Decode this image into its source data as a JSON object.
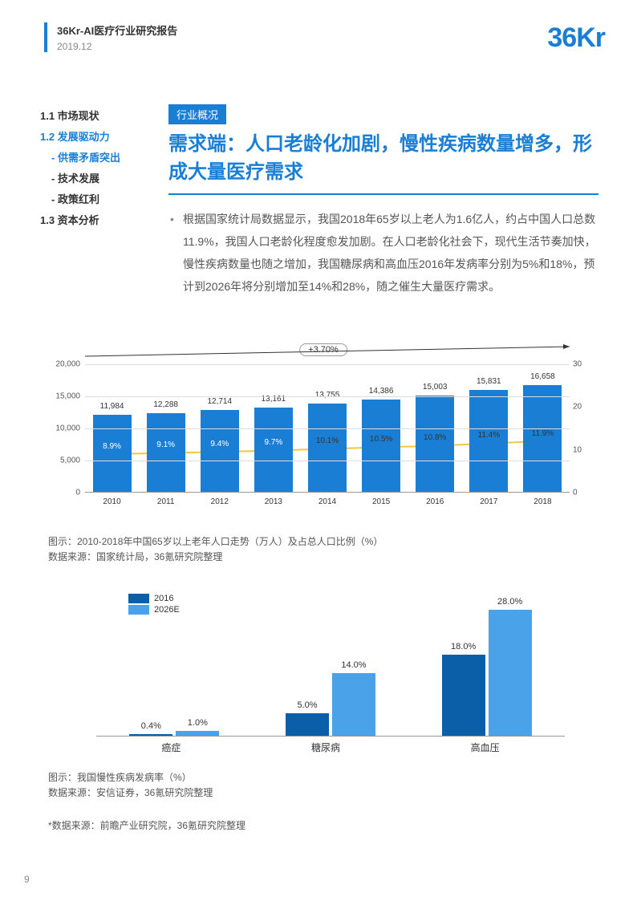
{
  "header": {
    "title": "36Kr-AI医疗行业研究报告",
    "date": "2019.12",
    "logo": "36Kr"
  },
  "toc": {
    "items": [
      {
        "label": "1.1 市场现状",
        "active": false
      },
      {
        "label": "1.2 发展驱动力",
        "active": true
      },
      {
        "label": "1.3 资本分析",
        "active": false
      }
    ],
    "subs": [
      {
        "label": "- 供需矛盾突出",
        "active": true
      },
      {
        "label": "- 技术发展",
        "active": false
      },
      {
        "label": "- 政策红利",
        "active": false
      }
    ]
  },
  "content": {
    "tag": "行业概况",
    "main_title": "需求端：人口老龄化加剧，慢性疾病数量增多，形成大量医疗需求",
    "body": "根据国家统计局数据显示，我国2018年65岁以上老人为1.6亿人，约占中国人口总数11.9%，我国人口老龄化程度愈发加剧。在人口老龄化社会下，现代生活节奏加快，慢性疾病数量也随之增加，我国糖尿病和高血压2016年发病率分别为5%和18%，预计到2026年将分别增加至14%和28%，随之催生大量医疗需求。"
  },
  "chart1": {
    "type": "bar-line-combo",
    "categories": [
      "2010",
      "2011",
      "2012",
      "2013",
      "2014",
      "2015",
      "2016",
      "2017",
      "2018"
    ],
    "bar_values": [
      11984,
      12288,
      12714,
      13161,
      13755,
      14386,
      15003,
      15831,
      16658
    ],
    "bar_labels": [
      "11,984",
      "12,288",
      "12,714",
      "13,161",
      "13,755",
      "14,386",
      "15,003",
      "15,831",
      "16,658"
    ],
    "line_values": [
      8.9,
      9.1,
      9.4,
      9.7,
      10.1,
      10.5,
      10.8,
      11.4,
      11.9
    ],
    "line_labels": [
      "8.9%",
      "9.1%",
      "9.4%",
      "9.7%",
      "10.1%",
      "10.5%",
      "10.8%",
      "11.4%",
      "11.9%"
    ],
    "left_axis": {
      "min": 0,
      "max": 20000,
      "step": 5000,
      "ticks": [
        "0",
        "5,000",
        "10,000",
        "15,000",
        "20,000"
      ]
    },
    "right_axis": {
      "min": 0,
      "max": 30,
      "step": 10,
      "ticks": [
        "0",
        "10",
        "20",
        "30"
      ]
    },
    "growth_label": "+3.70%",
    "bar_color": "#1a7fd4",
    "line_color": "#f5c542",
    "marker_color": "#f5c542",
    "caption1": "图示：2010-2018年中国65岁以上老年人口走势（万人）及占总人口比例（%）",
    "caption2": "数据来源：国家统计局，36氪研究院整理"
  },
  "chart2": {
    "type": "grouped-bar",
    "categories": [
      "癌症",
      "糖尿病",
      "高血压"
    ],
    "series": [
      {
        "name": "2016",
        "values": [
          0.4,
          5.0,
          18.0
        ],
        "labels": [
          "0.4%",
          "5.0%",
          "18.0%"
        ],
        "color": "#0a5fa8"
      },
      {
        "name": "2026E",
        "values": [
          1.0,
          14.0,
          28.0
        ],
        "labels": [
          "1.0%",
          "14.0%",
          "28.0%"
        ],
        "color": "#4aa3e8"
      }
    ],
    "ymax": 30,
    "caption1": "图示：我国慢性疾病发病率（%）",
    "caption2": "数据来源：安信证券，36氪研究院整理"
  },
  "footnote": "*数据来源：前瞻产业研究院，36氪研究院整理",
  "page_number": "9"
}
